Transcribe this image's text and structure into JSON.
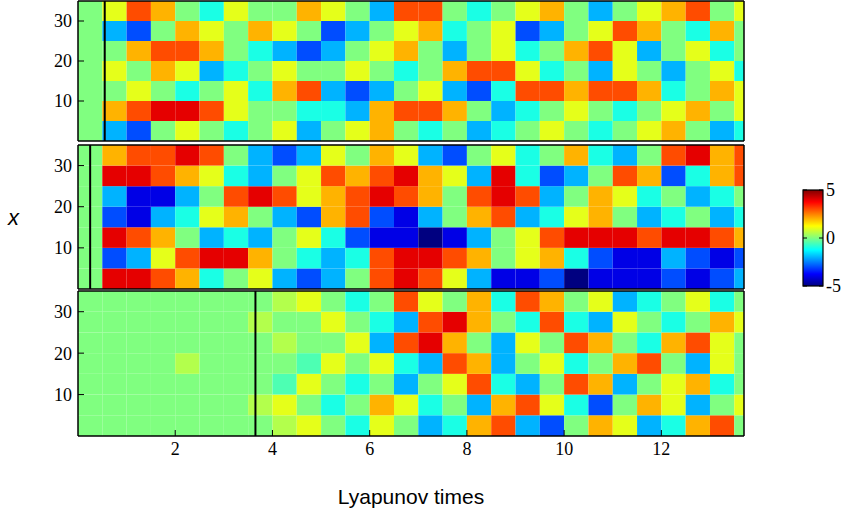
{
  "chart_data": [
    {
      "type": "heatmap",
      "xlim": [
        0,
        13.7
      ],
      "ylim": [
        0,
        35
      ],
      "xticks": [
        2,
        4,
        6,
        8,
        10,
        12
      ],
      "yticks": [
        10,
        20,
        30
      ],
      "tick_labels": "y",
      "vline": 0.55,
      "x_bins": [
        0,
        0.5,
        1,
        1.5,
        2,
        2.5,
        3,
        3.5,
        4,
        4.5,
        5,
        5.5,
        6,
        6.5,
        7,
        7.5,
        8,
        8.5,
        9,
        9.5,
        10,
        10.5,
        11,
        11.5,
        12,
        12.5,
        13,
        13.5,
        14
      ],
      "y_bins": [
        0,
        5,
        10,
        15,
        20,
        25,
        30,
        35
      ],
      "z": [
        [
          0,
          -2,
          -3,
          0,
          1,
          0,
          -1,
          0,
          1,
          -2,
          0,
          1,
          2,
          0,
          -1,
          0,
          -2,
          -1,
          0,
          1,
          0,
          -1,
          0,
          1,
          2,
          0,
          -2,
          -1
        ],
        [
          0,
          2,
          3,
          4,
          4,
          3,
          1,
          0,
          0,
          -1,
          -1,
          -2,
          2,
          3,
          3,
          2,
          0,
          -2,
          -1,
          0,
          1,
          0,
          -1,
          0,
          1,
          2,
          0,
          1
        ],
        [
          0,
          0,
          1,
          0,
          -1,
          0,
          1,
          -1,
          2,
          3,
          -2,
          -3,
          -2,
          0,
          1,
          -2,
          -3,
          -1,
          3,
          3,
          2,
          3,
          3,
          2,
          -1,
          0,
          2,
          1
        ],
        [
          0,
          1,
          0,
          2,
          1,
          -2,
          -1,
          0,
          1,
          0,
          0,
          1,
          0,
          -1,
          0,
          2,
          3,
          3,
          1,
          -1,
          0,
          -2,
          1,
          0,
          -2,
          0,
          1,
          -1
        ],
        [
          0,
          0,
          2,
          3,
          3,
          2,
          0,
          -1,
          -2,
          -3,
          -2,
          0,
          1,
          2,
          0,
          -2,
          0,
          1,
          -1,
          0,
          2,
          3,
          1,
          -2,
          0,
          1,
          -1,
          0
        ],
        [
          0,
          -2,
          -3,
          0,
          2,
          1,
          0,
          2,
          1,
          0,
          -3,
          -2,
          0,
          1,
          2,
          -1,
          0,
          1,
          -3,
          -2,
          0,
          1,
          3,
          2,
          0,
          -1,
          2,
          0
        ],
        [
          0,
          1,
          3,
          2,
          0,
          -1,
          1,
          0,
          0,
          2,
          1,
          0,
          -2,
          3,
          3,
          0,
          -1,
          0,
          1,
          2,
          0,
          -2,
          0,
          1,
          2,
          3,
          0,
          1
        ]
      ]
    },
    {
      "type": "heatmap",
      "ylabel": "x",
      "xlim": [
        0,
        13.7
      ],
      "ylim": [
        0,
        35
      ],
      "xticks": [
        2,
        4,
        6,
        8,
        10,
        12
      ],
      "yticks": [
        10,
        20,
        30
      ],
      "tick_labels": "y",
      "vline": 0.25,
      "colorbar": {
        "range": [
          -5,
          5
        ],
        "ticks": [
          5,
          0,
          -5
        ]
      },
      "x_bins": [
        0,
        0.5,
        1,
        1.5,
        2,
        2.5,
        3,
        3.5,
        4,
        4.5,
        5,
        5.5,
        6,
        6.5,
        7,
        7.5,
        8,
        8.5,
        9,
        9.5,
        10,
        10.5,
        11,
        11.5,
        12,
        12.5,
        13,
        13.5,
        14
      ],
      "y_bins": [
        0,
        5,
        10,
        15,
        20,
        25,
        30,
        35
      ],
      "z": [
        [
          0,
          4,
          4,
          3,
          2,
          -1,
          0,
          1,
          -2,
          -3,
          -2,
          0,
          3,
          4,
          3,
          1,
          -2,
          -4,
          -4,
          -3,
          -5,
          -4,
          -4,
          -4,
          -3,
          -4,
          -3,
          -2
        ],
        [
          0,
          -3,
          -2,
          1,
          3,
          4,
          4,
          2,
          0,
          -1,
          -2,
          -1,
          3,
          4,
          4,
          3,
          2,
          0,
          1,
          2,
          -1,
          -3,
          -4,
          -4,
          -2,
          -3,
          -4,
          -3
        ],
        [
          0,
          4,
          3,
          2,
          0,
          -2,
          -1,
          -2,
          0,
          1,
          -1,
          -3,
          -4,
          -4,
          -5,
          -4,
          -2,
          0,
          1,
          3,
          4,
          4,
          4,
          3,
          4,
          4,
          3,
          2
        ],
        [
          0,
          -3,
          -4,
          -2,
          -1,
          1,
          2,
          0,
          -2,
          -3,
          2,
          3,
          -3,
          -4,
          -2,
          0,
          2,
          3,
          -2,
          -1,
          1,
          2,
          0,
          -2,
          -1,
          0,
          -2,
          -1
        ],
        [
          0,
          -2,
          -4,
          -4,
          -2,
          0,
          3,
          4,
          3,
          1,
          2,
          3,
          4,
          3,
          2,
          0,
          3,
          4,
          3,
          -2,
          0,
          2,
          1,
          -1,
          0,
          -2,
          -1,
          0
        ],
        [
          0,
          4,
          4,
          3,
          2,
          1,
          -1,
          -2,
          0,
          1,
          3,
          2,
          3,
          4,
          2,
          1,
          -2,
          4,
          -1,
          -3,
          -2,
          0,
          3,
          2,
          -3,
          -1,
          2,
          3
        ],
        [
          0,
          2,
          3,
          3,
          4,
          3,
          0,
          -2,
          -3,
          -2,
          1,
          0,
          2,
          1,
          -2,
          -3,
          0,
          1,
          -1,
          0,
          2,
          -1,
          -2,
          0,
          3,
          4,
          2,
          3
        ]
      ]
    },
    {
      "type": "heatmap",
      "xlabel": "Lyapunov times",
      "xlim": [
        0,
        13.7
      ],
      "ylim": [
        0,
        35
      ],
      "xticks": [
        2,
        4,
        6,
        8,
        10,
        12
      ],
      "yticks": [
        10,
        20,
        30
      ],
      "vline": 3.65,
      "x_bins": [
        0,
        0.5,
        1,
        1.5,
        2,
        2.5,
        3,
        3.5,
        4,
        4.5,
        5,
        5.5,
        6,
        6.5,
        7,
        7.5,
        8,
        8.5,
        9,
        9.5,
        10,
        10.5,
        11,
        11.5,
        12,
        12.5,
        13,
        13.5,
        14
      ],
      "y_bins": [
        0,
        5,
        10,
        15,
        20,
        25,
        30,
        35
      ],
      "z": [
        [
          0,
          0,
          0,
          0,
          0,
          0,
          0,
          0,
          0.5,
          1,
          0,
          -1,
          1,
          0,
          -2,
          -1,
          2,
          3,
          -2,
          -3,
          0,
          2,
          1,
          -2,
          -1,
          2,
          3,
          0
        ],
        [
          0,
          0,
          0,
          0,
          0,
          0,
          0,
          0.5,
          1,
          0,
          -1,
          0,
          2,
          1,
          -1,
          0,
          -2,
          2,
          3,
          1,
          -1,
          -3,
          0,
          2,
          1,
          -2,
          0,
          1
        ],
        [
          0,
          0,
          0,
          0,
          0,
          0,
          0,
          0,
          -0.5,
          1,
          0,
          -1,
          0,
          -2,
          0,
          1,
          3,
          -1,
          -2,
          0,
          3,
          2,
          -2,
          0,
          1,
          2,
          -1,
          0
        ],
        [
          0,
          0,
          0,
          0,
          0.5,
          0,
          0,
          0,
          0,
          -0.5,
          1,
          0,
          1,
          -1,
          -2,
          3,
          2,
          -2,
          0,
          1,
          -1,
          0,
          2,
          3,
          0,
          -2,
          1,
          0
        ],
        [
          0,
          0,
          0,
          0,
          0,
          0,
          0,
          0,
          0.5,
          0,
          0,
          1,
          -2,
          3,
          4,
          2,
          0,
          -2,
          1,
          0,
          3,
          2,
          0,
          -1,
          2,
          3,
          1,
          0
        ],
        [
          0,
          0,
          0,
          0,
          0,
          0,
          0,
          0.5,
          0,
          0,
          1,
          0,
          -1,
          -2,
          3,
          4,
          2,
          0,
          -1,
          3,
          -1,
          -2,
          1,
          0,
          -1,
          0,
          2,
          1
        ],
        [
          0,
          0,
          0,
          0,
          0,
          0,
          0,
          0,
          0.5,
          1,
          0,
          -1,
          0,
          3,
          1,
          0,
          2,
          -1,
          3,
          2,
          0,
          1,
          -2,
          -1,
          0,
          1,
          -1,
          0
        ]
      ]
    }
  ]
}
